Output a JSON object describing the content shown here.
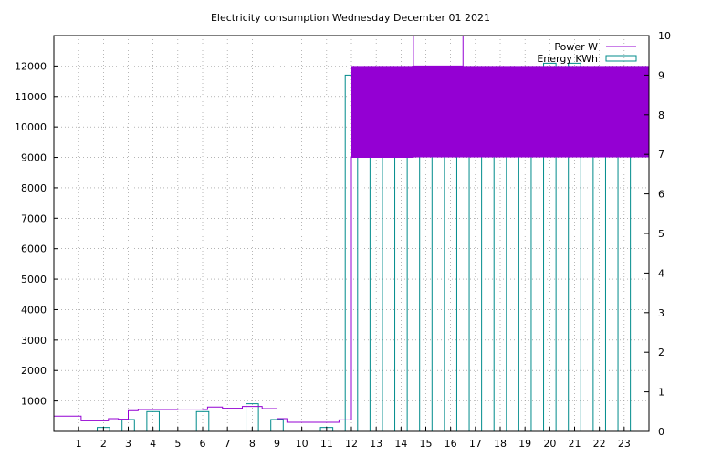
{
  "chart_data": {
    "type": "bar",
    "title": "Electricity consumption Wednesday December 01 2021",
    "xlim": [
      0,
      24
    ],
    "ylim_left": [
      0,
      13000
    ],
    "ylim_right": [
      0,
      10
    ],
    "grid": true,
    "legend_position": "top-right",
    "x_ticks": [
      "1",
      "2",
      "3",
      "4",
      "5",
      "6",
      "7",
      "8",
      "9",
      "10",
      "11",
      "12",
      "13",
      "14",
      "15",
      "16",
      "17",
      "18",
      "19",
      "20",
      "21",
      "22",
      "23"
    ],
    "y_ticks_left": [
      "1000",
      "2000",
      "3000",
      "4000",
      "5000",
      "6000",
      "7000",
      "8000",
      "9000",
      "10000",
      "11000",
      "12000"
    ],
    "y_ticks_right": [
      "0",
      "1",
      "2",
      "3",
      "4",
      "5",
      "6",
      "7",
      "8",
      "9",
      "10"
    ],
    "series": [
      {
        "name": "Power W",
        "type": "step",
        "color": "#9400d3",
        "points": [
          [
            0,
            500
          ],
          [
            1,
            500
          ],
          [
            1.1,
            350
          ],
          [
            2,
            350
          ],
          [
            2.2,
            420
          ],
          [
            2.6,
            400
          ],
          [
            3,
            680
          ],
          [
            3.4,
            720
          ],
          [
            4,
            720
          ],
          [
            5,
            730
          ],
          [
            6,
            720
          ],
          [
            6.2,
            800
          ],
          [
            6.8,
            760
          ],
          [
            7.6,
            820
          ],
          [
            8.4,
            750
          ],
          [
            9,
            420
          ],
          [
            9.4,
            300
          ],
          [
            10,
            300
          ],
          [
            11,
            300
          ],
          [
            11.5,
            380
          ],
          [
            11.95,
            380
          ],
          [
            12,
            9000
          ],
          [
            14.5,
            13000
          ],
          [
            14.5,
            12000
          ],
          [
            16.5,
            12000
          ],
          [
            16.5,
            13000
          ],
          [
            24,
            12000
          ]
        ],
        "band": {
          "from_x": 12,
          "to_x": 24,
          "low": 9000,
          "high": 12000
        }
      },
      {
        "name": "Energy KWh",
        "type": "bar",
        "color": "#008b8b",
        "axis": "right",
        "categories": [
          1,
          2,
          3,
          4,
          5,
          6,
          7,
          8,
          9,
          10,
          11,
          12,
          13,
          14,
          15,
          16,
          17,
          18,
          19,
          20,
          21,
          22,
          23
        ],
        "values": [
          0,
          0.1,
          0.3,
          0.5,
          0,
          0.5,
          0,
          0.7,
          0.3,
          0,
          0.1,
          9.0,
          9.0,
          8.9,
          9.1,
          8.8,
          8.9,
          9.2,
          9.2,
          9.3,
          9.3,
          9.1,
          9.2
        ]
      }
    ]
  }
}
